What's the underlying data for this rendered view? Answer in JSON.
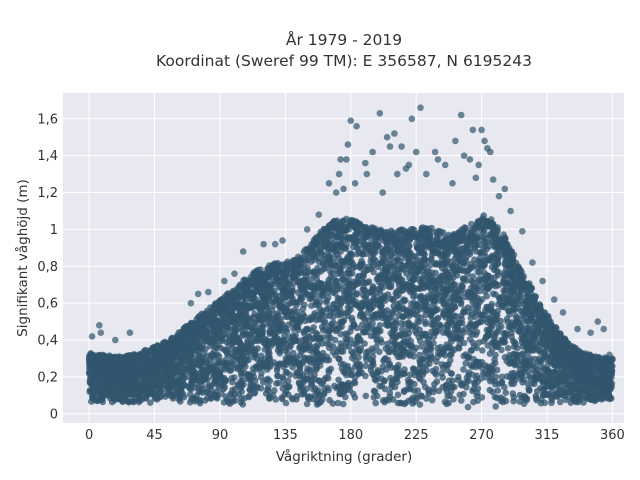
{
  "chart_data": {
    "type": "scatter",
    "title": "År 1979 - 2019",
    "subtitle": "Koordinat (Sweref 99 TM): E 356587, N 6195243",
    "xlabel": "Vågriktning (grader)",
    "ylabel": "Signifikant våghöjd (m)",
    "xlim": [
      -18,
      368
    ],
    "ylim": [
      -0.05,
      1.74
    ],
    "xticks": [
      0,
      45,
      90,
      135,
      180,
      225,
      270,
      315,
      360
    ],
    "xtick_labels": [
      "0",
      "45",
      "90",
      "135",
      "180",
      "225",
      "270",
      "315",
      "360"
    ],
    "yticks": [
      0,
      0.2,
      0.4,
      0.6,
      0.8,
      1,
      1.2,
      1.4,
      1.6
    ],
    "ytick_labels": [
      "0",
      "0,2",
      "0,4",
      "0,6",
      "0,8",
      "1",
      "1,2",
      "1,4",
      "1,6"
    ],
    "grid": true,
    "marker_color": "#31566e",
    "plot_background": "#e8e8f0",
    "envelope": {
      "x": [
        0,
        10,
        20,
        30,
        40,
        50,
        60,
        70,
        80,
        90,
        100,
        110,
        120,
        130,
        140,
        150,
        160,
        170,
        180,
        190,
        200,
        210,
        220,
        230,
        240,
        250,
        260,
        270,
        280,
        290,
        300,
        310,
        320,
        330,
        340,
        350,
        360
      ],
      "ymin": [
        0.06,
        0.06,
        0.06,
        0.06,
        0.06,
        0.06,
        0.06,
        0.05,
        0.05,
        0.05,
        0.05,
        0.05,
        0.05,
        0.05,
        0.05,
        0.05,
        0.05,
        0.05,
        0.05,
        0.05,
        0.05,
        0.05,
        0.05,
        0.05,
        0.05,
        0.04,
        0.03,
        0.02,
        0.03,
        0.04,
        0.05,
        0.05,
        0.06,
        0.06,
        0.06,
        0.06,
        0.06
      ],
      "ymax": [
        0.33,
        0.32,
        0.31,
        0.32,
        0.35,
        0.38,
        0.43,
        0.5,
        0.56,
        0.62,
        0.68,
        0.75,
        0.8,
        0.82,
        0.84,
        0.9,
        1.0,
        1.06,
        1.06,
        1.02,
        1.0,
        1.0,
        1.0,
        1.02,
        1.0,
        0.98,
        1.02,
        1.08,
        1.05,
        0.9,
        0.75,
        0.6,
        0.48,
        0.38,
        0.33,
        0.31,
        0.3
      ]
    },
    "outliers": [
      {
        "x": 2,
        "y": 0.42
      },
      {
        "x": 7,
        "y": 0.48
      },
      {
        "x": 8,
        "y": 0.44
      },
      {
        "x": 18,
        "y": 0.4
      },
      {
        "x": 28,
        "y": 0.44
      },
      {
        "x": 70,
        "y": 0.6
      },
      {
        "x": 75,
        "y": 0.65
      },
      {
        "x": 82,
        "y": 0.66
      },
      {
        "x": 93,
        "y": 0.72
      },
      {
        "x": 100,
        "y": 0.76
      },
      {
        "x": 106,
        "y": 0.88
      },
      {
        "x": 120,
        "y": 0.92
      },
      {
        "x": 128,
        "y": 0.92
      },
      {
        "x": 133,
        "y": 0.94
      },
      {
        "x": 150,
        "y": 1.0
      },
      {
        "x": 158,
        "y": 1.08
      },
      {
        "x": 165,
        "y": 1.25
      },
      {
        "x": 170,
        "y": 1.2
      },
      {
        "x": 172,
        "y": 1.3
      },
      {
        "x": 173,
        "y": 1.38
      },
      {
        "x": 175,
        "y": 1.22
      },
      {
        "x": 177,
        "y": 1.38
      },
      {
        "x": 178,
        "y": 1.46
      },
      {
        "x": 180,
        "y": 1.59
      },
      {
        "x": 183,
        "y": 1.25
      },
      {
        "x": 184,
        "y": 1.56
      },
      {
        "x": 190,
        "y": 1.36
      },
      {
        "x": 191,
        "y": 1.3
      },
      {
        "x": 195,
        "y": 1.42
      },
      {
        "x": 200,
        "y": 1.63
      },
      {
        "x": 202,
        "y": 1.2
      },
      {
        "x": 205,
        "y": 1.5
      },
      {
        "x": 207,
        "y": 1.45
      },
      {
        "x": 210,
        "y": 1.52
      },
      {
        "x": 212,
        "y": 1.3
      },
      {
        "x": 215,
        "y": 1.45
      },
      {
        "x": 218,
        "y": 1.33
      },
      {
        "x": 220,
        "y": 1.35
      },
      {
        "x": 222,
        "y": 1.6
      },
      {
        "x": 225,
        "y": 1.42
      },
      {
        "x": 228,
        "y": 1.66
      },
      {
        "x": 232,
        "y": 1.3
      },
      {
        "x": 238,
        "y": 1.42
      },
      {
        "x": 240,
        "y": 1.38
      },
      {
        "x": 245,
        "y": 1.35
      },
      {
        "x": 250,
        "y": 1.25
      },
      {
        "x": 252,
        "y": 1.48
      },
      {
        "x": 256,
        "y": 1.62
      },
      {
        "x": 258,
        "y": 1.4
      },
      {
        "x": 262,
        "y": 1.38
      },
      {
        "x": 264,
        "y": 1.54
      },
      {
        "x": 266,
        "y": 1.28
      },
      {
        "x": 268,
        "y": 1.35
      },
      {
        "x": 270,
        "y": 1.54
      },
      {
        "x": 272,
        "y": 1.48
      },
      {
        "x": 274,
        "y": 1.44
      },
      {
        "x": 276,
        "y": 1.42
      },
      {
        "x": 278,
        "y": 1.27
      },
      {
        "x": 282,
        "y": 1.18
      },
      {
        "x": 286,
        "y": 1.22
      },
      {
        "x": 290,
        "y": 1.1
      },
      {
        "x": 298,
        "y": 0.99
      },
      {
        "x": 305,
        "y": 0.82
      },
      {
        "x": 312,
        "y": 0.72
      },
      {
        "x": 320,
        "y": 0.62
      },
      {
        "x": 326,
        "y": 0.55
      },
      {
        "x": 336,
        "y": 0.46
      },
      {
        "x": 345,
        "y": 0.44
      },
      {
        "x": 350,
        "y": 0.5
      },
      {
        "x": 354,
        "y": 0.46
      },
      {
        "x": 358,
        "y": 0.32
      }
    ]
  }
}
